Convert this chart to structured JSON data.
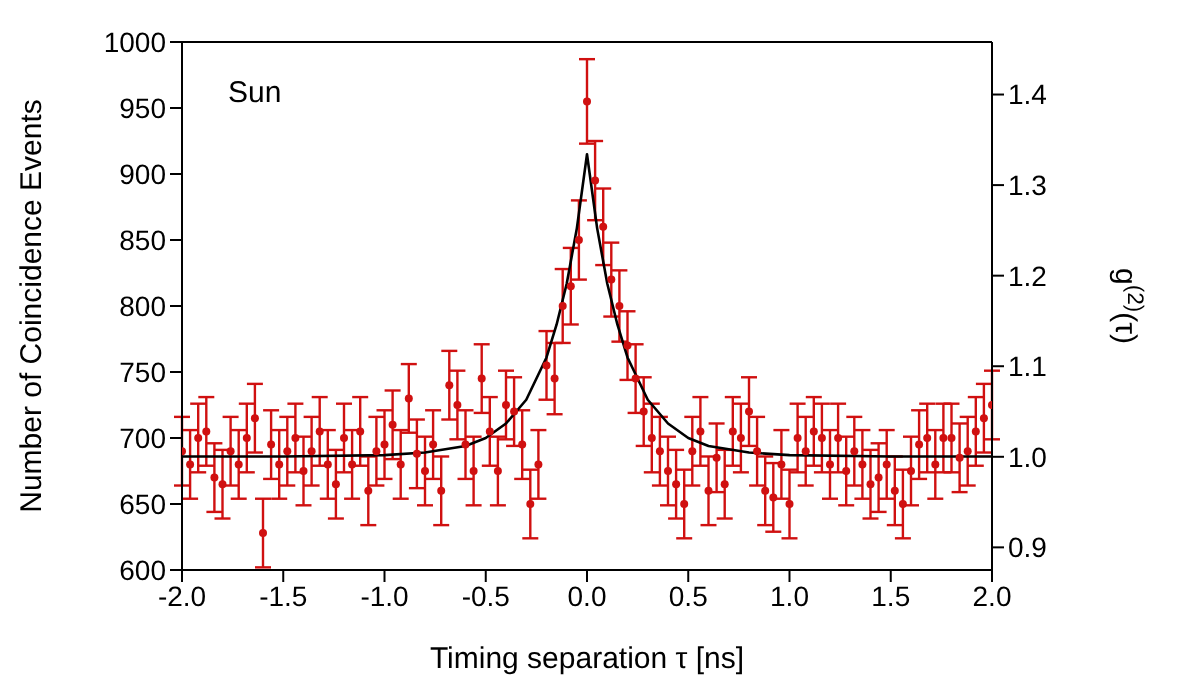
{
  "chart_data": {
    "type": "scatter",
    "xlabel": "Timing separation τ [ns]",
    "ylabel": "Number of Coincidence Events",
    "y2label": "g$^{(2)}$(τ)",
    "annotations": [
      "Sun"
    ],
    "xlim": [
      -2.0,
      2.0
    ],
    "xticks": [
      {
        "value": -2,
        "label": "-2.0"
      },
      -1.5,
      {
        "value": -1,
        "label": "-1.0"
      },
      -0.5,
      {
        "value": 0,
        "label": "0.0"
      },
      0.5,
      {
        "value": 1,
        "label": "1.0"
      },
      1.5,
      {
        "value": 2,
        "label": "2.0"
      }
    ],
    "ylim": [
      600,
      1000
    ],
    "yticks": [
      600,
      650,
      700,
      750,
      800,
      850,
      900,
      950,
      1000
    ],
    "y2lim": [
      0.875,
      1.458
    ],
    "y2ticks": [
      0.9,
      {
        "value": 1,
        "label": "1.0"
      },
      1.1,
      1.2,
      1.3,
      1.4
    ],
    "grid": false,
    "legend": false,
    "series": [
      {
        "color": "#d01010",
        "x": [
          -2.0,
          -1.96,
          -1.92,
          -1.88,
          -1.84,
          -1.8,
          -1.76,
          -1.72,
          -1.68,
          -1.64,
          -1.6,
          -1.56,
          -1.52,
          -1.48,
          -1.44,
          -1.4,
          -1.36,
          -1.32,
          -1.28,
          -1.24,
          -1.2,
          -1.16,
          -1.12,
          -1.08,
          -1.04,
          -1.0,
          -0.96,
          -0.92,
          -0.88,
          -0.84,
          -0.8,
          -0.76,
          -0.72,
          -0.68,
          -0.64,
          -0.6,
          -0.56,
          -0.52,
          -0.48,
          -0.44,
          -0.4,
          -0.36,
          -0.32,
          -0.28,
          -0.24,
          -0.2,
          -0.16,
          -0.12,
          -0.08,
          -0.04,
          0.0,
          0.04,
          0.08,
          0.12,
          0.16,
          0.2,
          0.24,
          0.28,
          0.32,
          0.36,
          0.4,
          0.44,
          0.48,
          0.52,
          0.56,
          0.6,
          0.64,
          0.68,
          0.72,
          0.76,
          0.8,
          0.84,
          0.88,
          0.92,
          0.96,
          1.0,
          1.04,
          1.08,
          1.12,
          1.16,
          1.2,
          1.24,
          1.28,
          1.32,
          1.36,
          1.4,
          1.44,
          1.48,
          1.52,
          1.56,
          1.6,
          1.64,
          1.68,
          1.72,
          1.76,
          1.8,
          1.84,
          1.88,
          1.92,
          1.96,
          2.0
        ],
        "values": [
          690,
          680,
          700,
          705,
          670,
          665,
          690,
          680,
          700,
          715,
          628,
          695,
          680,
          690,
          700,
          675,
          690,
          705,
          680,
          665,
          700,
          680,
          705,
          660,
          690,
          695,
          710,
          680,
          730,
          688,
          675,
          695,
          660,
          740,
          725,
          695,
          675,
          745,
          705,
          675,
          725,
          720,
          695,
          650,
          680,
          755,
          745,
          800,
          815,
          850,
          955,
          895,
          860,
          820,
          800,
          770,
          745,
          720,
          700,
          690,
          675,
          665,
          650,
          690,
          705,
          660,
          685,
          665,
          705,
          700,
          720,
          690,
          660,
          655,
          680,
          650,
          700,
          690,
          705,
          700,
          680,
          700,
          675,
          690,
          680,
          665,
          670,
          680,
          660,
          650,
          675,
          695,
          700,
          680,
          700,
          700,
          685,
          690,
          705,
          715,
          725
        ],
        "errors": [
          26,
          26,
          26,
          26,
          26,
          26,
          26,
          26,
          26,
          26,
          26,
          26,
          26,
          26,
          26,
          26,
          26,
          26,
          26,
          26,
          26,
          26,
          26,
          26,
          26,
          26,
          26,
          26,
          26,
          26,
          26,
          26,
          26,
          26,
          26,
          26,
          26,
          26,
          26,
          26,
          26,
          26,
          26,
          26,
          26,
          26,
          27,
          28,
          29,
          30,
          32,
          30,
          29,
          28,
          27,
          26,
          26,
          26,
          26,
          26,
          26,
          26,
          26,
          26,
          26,
          26,
          26,
          26,
          26,
          26,
          26,
          26,
          26,
          26,
          26,
          26,
          26,
          26,
          26,
          26,
          26,
          26,
          26,
          26,
          26,
          26,
          26,
          26,
          26,
          26,
          26,
          26,
          26,
          26,
          26,
          26,
          26,
          26,
          26,
          26,
          26
        ]
      },
      {
        "type": "line",
        "color": "#000000",
        "x": [
          -2.0,
          -1.5,
          -1.0,
          -0.8,
          -0.6,
          -0.5,
          -0.4,
          -0.3,
          -0.2,
          -0.15,
          -0.1,
          -0.05,
          0.0,
          0.05,
          0.1,
          0.15,
          0.2,
          0.3,
          0.4,
          0.5,
          0.6,
          0.8,
          1.0,
          1.5,
          2.0
        ],
        "values": [
          686,
          686,
          687,
          689,
          694,
          700,
          711,
          729,
          761,
          786,
          817,
          859,
          915,
          859,
          817,
          786,
          761,
          729,
          711,
          700,
          694,
          689,
          687,
          686,
          686
        ]
      }
    ]
  }
}
